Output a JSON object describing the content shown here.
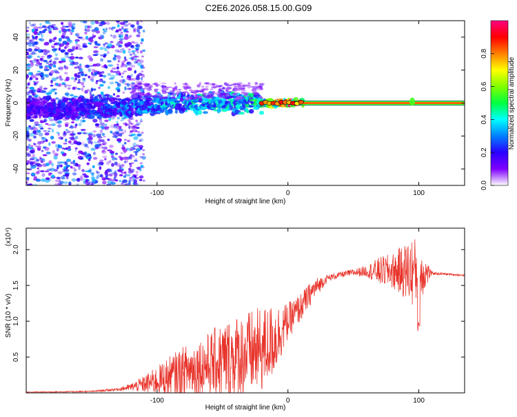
{
  "title": "C2E6.2026.058.15.00.G09",
  "chart_data": [
    {
      "type": "heatmap",
      "title": "C2E6.2026.058.15.00.G09",
      "xlabel": "Height of straight line (km)",
      "ylabel": "Frequency (Hz)",
      "xlim": [
        -200,
        135
      ],
      "ylim": [
        -50,
        50
      ],
      "x_ticks": [
        -100,
        0,
        100
      ],
      "x_tick_labels": [
        "-100",
        "0",
        "100"
      ],
      "y_ticks": [
        -40,
        -20,
        0,
        20,
        40
      ],
      "y_tick_labels": [
        "-40",
        "-20",
        "0",
        "20",
        "40"
      ],
      "colorbar": {
        "label": "Normalized spectral amplitude",
        "range": [
          0,
          1
        ],
        "ticks": [
          0.0,
          0.2,
          0.4,
          0.6,
          0.8
        ],
        "tick_labels": [
          "0.0",
          "0.2",
          "0.4",
          "0.6",
          "0.8"
        ],
        "colors": [
          "#ffffff",
          "#7f00ff",
          "#2a00ff",
          "#0080ff",
          "#00ffff",
          "#00ff40",
          "#80ff00",
          "#ffff00",
          "#ff8000",
          "#ff0000",
          "#ff0080"
        ]
      },
      "ridge": {
        "description_points_x": [
          -200,
          -150,
          -120,
          -100,
          -80,
          -60,
          -40,
          -20,
          0,
          20,
          60,
          100,
          135
        ],
        "frequency": [
          -3,
          -3,
          -2,
          -1,
          0,
          0,
          0,
          0,
          0,
          0,
          0,
          0,
          0
        ],
        "amplitude": [
          0.15,
          0.2,
          0.25,
          0.3,
          0.35,
          0.35,
          0.35,
          0.4,
          0.8,
          0.9,
          0.9,
          0.9,
          0.9
        ]
      }
    },
    {
      "type": "line",
      "title": "",
      "xlabel": "Height of straight line (km)",
      "ylabel": "SNR (10 * v/v)",
      "y_multiplier_label": "(x10⁴)",
      "xlim": [
        -200,
        135
      ],
      "ylim": [
        0,
        2.3
      ],
      "x_ticks": [
        -100,
        0,
        100
      ],
      "x_tick_labels": [
        "-100",
        "0",
        "100"
      ],
      "y_ticks": [
        0.5,
        1.0,
        1.5,
        2.0
      ],
      "y_tick_labels": [
        "0.5",
        "1.0",
        "1.5",
        "2.0"
      ],
      "color": "#e8332a",
      "envelope": {
        "x": [
          -200,
          -150,
          -130,
          -120,
          -110,
          -100,
          -90,
          -80,
          -70,
          -60,
          -50,
          -40,
          -30,
          -20,
          -10,
          0,
          10,
          20,
          30,
          40,
          50,
          60,
          70,
          80,
          90,
          95,
          100,
          110,
          120,
          135
        ],
        "mid": [
          0.01,
          0.02,
          0.05,
          0.08,
          0.12,
          0.17,
          0.22,
          0.3,
          0.35,
          0.4,
          0.45,
          0.5,
          0.55,
          0.6,
          0.75,
          1.0,
          1.2,
          1.45,
          1.6,
          1.65,
          1.68,
          1.7,
          1.7,
          1.7,
          1.7,
          1.7,
          1.68,
          1.67,
          1.66,
          1.64
        ],
        "amp": [
          0.005,
          0.01,
          0.02,
          0.05,
          0.12,
          0.2,
          0.3,
          0.35,
          0.4,
          0.45,
          0.55,
          0.6,
          0.6,
          0.6,
          0.5,
          0.25,
          0.2,
          0.15,
          0.05,
          0.04,
          0.05,
          0.08,
          0.2,
          0.25,
          0.4,
          0.5,
          0.45,
          0.02,
          0.015,
          0.01
        ]
      }
    }
  ]
}
